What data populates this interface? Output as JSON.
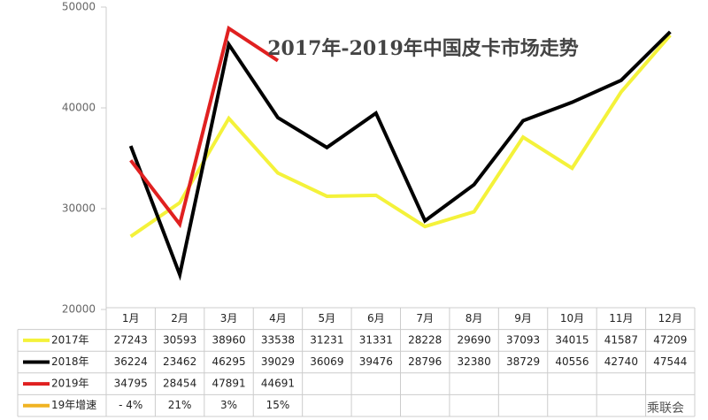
{
  "chart_data": {
    "type": "line",
    "title": "2017年-2019年中国皮卡市场走势",
    "categories": [
      "1月",
      "2月",
      "3月",
      "4月",
      "5月",
      "6月",
      "7月",
      "8月",
      "9月",
      "10月",
      "11月",
      "12月"
    ],
    "series": [
      {
        "name": "2017年",
        "color": "#f4f23a",
        "values": [
          27243,
          30593,
          38960,
          33538,
          31231,
          31331,
          28228,
          29690,
          37093,
          34015,
          41587,
          47209
        ]
      },
      {
        "name": "2018年",
        "color": "#000000",
        "values": [
          36224,
          23462,
          46295,
          39029,
          36069,
          39476,
          28796,
          32380,
          38729,
          40556,
          42740,
          47544
        ]
      },
      {
        "name": "2019年",
        "color": "#e02020",
        "values": [
          34795,
          28454,
          47891,
          44691,
          null,
          null,
          null,
          null,
          null,
          null,
          null,
          null
        ]
      },
      {
        "name": "19年增速",
        "color": "#f0b323",
        "table_only": true,
        "values": [
          -4,
          21,
          3,
          15,
          null,
          null,
          null,
          null,
          null,
          null,
          null,
          null
        ],
        "value_labels": [
          "- 4%",
          "21%",
          "3%",
          "15%",
          null,
          null,
          null,
          null,
          null,
          null,
          null,
          null
        ]
      }
    ],
    "ylim": [
      20000,
      50000
    ],
    "yticks": [
      20000,
      30000,
      40000,
      50000
    ],
    "watermark": "乘联会"
  }
}
